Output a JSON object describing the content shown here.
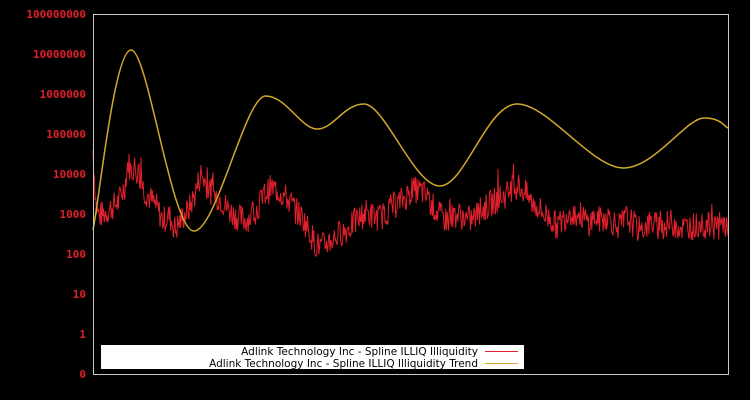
{
  "chart_data": {
    "type": "line",
    "title": "",
    "xlabel": "",
    "ylabel": "",
    "yscale": "log",
    "ylim": [
      0.1,
      100000000
    ],
    "y_ticks": [
      {
        "label": "100000000",
        "value": 100000000
      },
      {
        "label": "10000000",
        "value": 10000000
      },
      {
        "label": "1000000",
        "value": 1000000
      },
      {
        "label": "100000",
        "value": 100000
      },
      {
        "label": "10000",
        "value": 10000
      },
      {
        "label": "1000",
        "value": 1000
      },
      {
        "label": "100",
        "value": 100
      },
      {
        "label": "10",
        "value": 10
      },
      {
        "label": "1",
        "value": 1
      },
      {
        "label": "0",
        "value": 0.1
      }
    ],
    "x_ticks": [],
    "grid": false,
    "legend_position": "lower-left inside",
    "series": [
      {
        "name": "Adlink Technology Inc - Spline ILLIQ Illiquidity",
        "color": "#e0202c",
        "x": [
          0.0,
          0.005,
          0.01,
          0.02,
          0.03,
          0.04,
          0.05,
          0.055,
          0.06,
          0.065,
          0.07,
          0.075,
          0.08,
          0.09,
          0.1,
          0.11,
          0.12,
          0.13,
          0.14,
          0.15,
          0.16,
          0.17,
          0.18,
          0.19,
          0.2,
          0.21,
          0.22,
          0.23,
          0.24,
          0.25,
          0.26,
          0.27,
          0.28,
          0.29,
          0.3,
          0.31,
          0.32,
          0.33,
          0.34,
          0.35,
          0.36,
          0.37,
          0.38,
          0.39,
          0.4,
          0.41,
          0.42,
          0.43,
          0.44,
          0.45,
          0.46,
          0.47,
          0.48,
          0.49,
          0.5,
          0.51,
          0.52,
          0.53,
          0.54,
          0.55,
          0.56,
          0.57,
          0.58,
          0.59,
          0.6,
          0.61,
          0.62,
          0.63,
          0.64,
          0.65,
          0.66,
          0.67,
          0.68,
          0.69,
          0.7,
          0.71,
          0.72,
          0.73,
          0.74,
          0.75,
          0.76,
          0.77,
          0.78,
          0.79,
          0.8,
          0.81,
          0.82,
          0.83,
          0.84,
          0.85,
          0.86,
          0.87,
          0.88,
          0.89,
          0.9,
          0.91,
          0.92,
          0.93,
          0.94,
          0.95,
          0.96,
          0.97,
          0.98,
          0.99,
          1.0
        ],
        "values": [
          40000,
          1500,
          900,
          1100,
          1500,
          2000,
          5000,
          20000,
          12000,
          15000,
          11000,
          8000,
          4000,
          2500,
          1500,
          700,
          900,
          400,
          800,
          1200,
          3000,
          10000,
          5000,
          3000,
          2500,
          1500,
          1000,
          800,
          700,
          900,
          1500,
          3000,
          4500,
          4000,
          3000,
          2000,
          1200,
          800,
          400,
          180,
          150,
          200,
          250,
          350,
          400,
          600,
          800,
          1100,
          900,
          800,
          1000,
          1500,
          1800,
          2500,
          3500,
          4000,
          3500,
          2000,
          1200,
          800,
          700,
          1000,
          900,
          700,
          800,
          1200,
          1500,
          2000,
          2500,
          3000,
          4000,
          5000,
          3500,
          2000,
          1500,
          1000,
          800,
          500,
          700,
          1200,
          1000,
          900,
          600,
          800,
          700,
          900,
          600,
          500,
          800,
          600,
          400,
          500,
          600,
          500,
          500,
          600,
          500,
          450,
          500,
          500,
          500,
          500,
          500,
          500,
          500
        ]
      },
      {
        "name": "Adlink Technology Inc - Spline ILLIQ Illiquidity Trend",
        "color": "#d4a82a",
        "x": [
          0.0,
          0.06,
          0.159,
          0.272,
          0.353,
          0.427,
          0.546,
          0.668,
          0.835,
          0.962,
          1.0
        ],
        "values": [
          400,
          12600000,
          376,
          891000,
          133000,
          562000,
          5000,
          562000,
          14100,
          251000,
          141000
        ]
      }
    ]
  },
  "legend": {
    "items": [
      {
        "label": "Adlink Technology Inc - Spline ILLIQ Illiquidity",
        "color": "#e0202c"
      },
      {
        "label": "Adlink Technology Inc - Spline ILLIQ Illiquidity Trend",
        "color": "#d4a82a"
      }
    ]
  },
  "colors": {
    "background": "#000000",
    "axis": "#c8c8c8",
    "tick_label": "#e0202c",
    "legend_bg": "#ffffff"
  }
}
